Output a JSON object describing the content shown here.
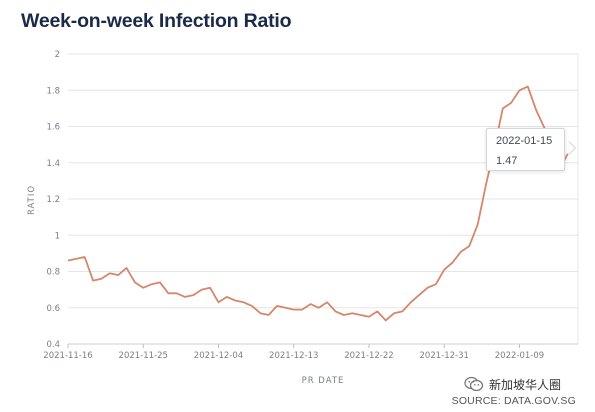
{
  "title": "Week-on-week Infection Ratio",
  "source_text": "SOURCE: DATA.GOV.SG",
  "watermark_text": "新加坡华人圈",
  "watermark_icon": "wechat-icon",
  "tooltip": {
    "date": "2022-01-15",
    "value": "1.47"
  },
  "colors": {
    "line": "#d4876a",
    "grid": "#e6e6e6",
    "title": "#1c2a4a",
    "axis_text": "#7a7f87"
  },
  "chart_data": {
    "type": "line",
    "title": "Week-on-week Infection Ratio",
    "xlabel": "PR DATE",
    "ylabel": "RATIO",
    "ylim": [
      0.4,
      2
    ],
    "yticks": [
      0.4,
      0.6,
      0.8,
      1,
      1.2,
      1.4,
      1.6,
      1.8,
      2
    ],
    "ytick_labels": [
      "0.4",
      "0.6",
      "0.8",
      "1",
      "1.2",
      "1.4",
      "1.6",
      "1.8",
      "2"
    ],
    "xticks": [
      "2021-11-16",
      "2021-11-25",
      "2021-12-04",
      "2021-12-13",
      "2021-12-22",
      "2021-12-31",
      "2022-01-09"
    ],
    "xlim": [
      "2021-11-16",
      "2022-01-16"
    ],
    "grid": "horizontal",
    "legend": "none",
    "series": [
      {
        "x": [
          "2021-11-16",
          "2021-11-17",
          "2021-11-18",
          "2021-11-19",
          "2021-11-20",
          "2021-11-21",
          "2021-11-22",
          "2021-11-23",
          "2021-11-24",
          "2021-11-25",
          "2021-11-26",
          "2021-11-27",
          "2021-11-28",
          "2021-11-29",
          "2021-11-30",
          "2021-12-01",
          "2021-12-02",
          "2021-12-03",
          "2021-12-04",
          "2021-12-05",
          "2021-12-06",
          "2021-12-07",
          "2021-12-08",
          "2021-12-09",
          "2021-12-10",
          "2021-12-11",
          "2021-12-12",
          "2021-12-13",
          "2021-12-14",
          "2021-12-15",
          "2021-12-16",
          "2021-12-17",
          "2021-12-18",
          "2021-12-19",
          "2021-12-20",
          "2021-12-21",
          "2021-12-22",
          "2021-12-23",
          "2021-12-24",
          "2021-12-25",
          "2021-12-26",
          "2021-12-27",
          "2021-12-28",
          "2021-12-29",
          "2021-12-30",
          "2021-12-31",
          "2022-01-01",
          "2022-01-02",
          "2022-01-03",
          "2022-01-04",
          "2022-01-05",
          "2022-01-06",
          "2022-01-07",
          "2022-01-08",
          "2022-01-09",
          "2022-01-10",
          "2022-01-11",
          "2022-01-12",
          "2022-01-13",
          "2022-01-14",
          "2022-01-15"
        ],
        "values": [
          0.86,
          0.87,
          0.88,
          0.75,
          0.76,
          0.79,
          0.78,
          0.82,
          0.74,
          0.71,
          0.73,
          0.74,
          0.68,
          0.68,
          0.66,
          0.67,
          0.7,
          0.71,
          0.63,
          0.66,
          0.64,
          0.63,
          0.61,
          0.57,
          0.56,
          0.61,
          0.6,
          0.59,
          0.59,
          0.62,
          0.6,
          0.63,
          0.58,
          0.56,
          0.57,
          0.56,
          0.55,
          0.58,
          0.53,
          0.57,
          0.58,
          0.63,
          0.67,
          0.71,
          0.73,
          0.81,
          0.85,
          0.91,
          0.94,
          1.06,
          1.28,
          1.48,
          1.7,
          1.73,
          1.8,
          1.82,
          1.69,
          1.59,
          1.41,
          1.38,
          1.47
        ]
      }
    ]
  }
}
